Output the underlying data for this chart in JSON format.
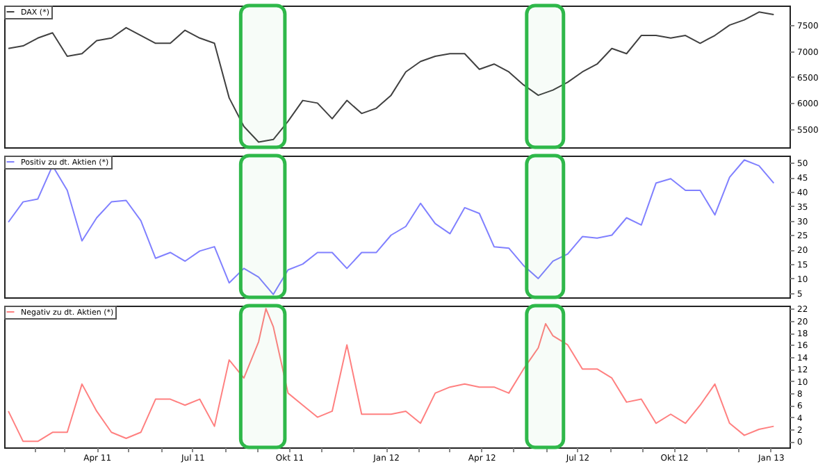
{
  "chart_data": [
    {
      "type": "line",
      "x": [
        "2011-01-07",
        "2011-01-21",
        "2011-02-04",
        "2011-02-18",
        "2011-03-04",
        "2011-03-18",
        "2011-04-01",
        "2011-04-15",
        "2011-04-29",
        "2011-05-13",
        "2011-05-27",
        "2011-06-10",
        "2011-06-24",
        "2011-07-08",
        "2011-07-22",
        "2011-08-05",
        "2011-08-19",
        "2011-09-02",
        "2011-09-16",
        "2011-09-30",
        "2011-10-14",
        "2011-10-28",
        "2011-11-11",
        "2011-11-25",
        "2011-12-09",
        "2011-12-23",
        "2012-01-06",
        "2012-01-20",
        "2012-02-03",
        "2012-02-17",
        "2012-03-02",
        "2012-03-16",
        "2012-03-30",
        "2012-04-13",
        "2012-04-27",
        "2012-05-11",
        "2012-05-25",
        "2012-06-08",
        "2012-06-22",
        "2012-07-06",
        "2012-07-20",
        "2012-08-03",
        "2012-08-17",
        "2012-08-31",
        "2012-09-14",
        "2012-09-28",
        "2012-10-12",
        "2012-10-26",
        "2012-11-09",
        "2012-11-23",
        "2012-12-07",
        "2012-12-21",
        "2013-01-04"
      ],
      "series": [
        {
          "name": "DAX (*)",
          "color": "#404040",
          "values": [
            7050,
            7100,
            7250,
            7350,
            6900,
            6950,
            7200,
            7250,
            7450,
            7300,
            7150,
            7150,
            7400,
            7250,
            7150,
            6100,
            5550,
            5250,
            5300,
            5650,
            6050,
            6000,
            5700,
            6050,
            5800,
            5900,
            6150,
            6600,
            6800,
            6900,
            6950,
            6950,
            6650,
            6750,
            6600,
            6350,
            6150,
            6250,
            6400,
            6600,
            6750,
            7050,
            6950,
            7300,
            7300,
            7250,
            7300,
            7150,
            7300,
            7500,
            7600,
            7750,
            7700
          ]
        }
      ],
      "xlim": [
        "2011-01-03",
        "2013-01-19"
      ],
      "ylim": [
        5150,
        7875
      ],
      "yticks": [
        5500,
        6000,
        6500,
        7000,
        7500
      ],
      "tick_labels": "y",
      "legend": "top left",
      "bands": [
        {
          "axis": "x",
          "from": "2011-08-16",
          "to": "2011-09-27",
          "color": "#2fb84a"
        },
        {
          "axis": "x",
          "from": "2012-05-14",
          "to": "2012-06-18",
          "color": "#2fb84a"
        }
      ]
    },
    {
      "type": "line",
      "x": [
        "2011-01-07",
        "2011-01-21",
        "2011-02-04",
        "2011-02-18",
        "2011-03-04",
        "2011-03-18",
        "2011-04-01",
        "2011-04-15",
        "2011-04-29",
        "2011-05-13",
        "2011-05-27",
        "2011-06-10",
        "2011-06-24",
        "2011-07-08",
        "2011-07-22",
        "2011-08-05",
        "2011-08-19",
        "2011-09-02",
        "2011-09-16",
        "2011-09-30",
        "2011-10-14",
        "2011-10-28",
        "2011-11-11",
        "2011-11-25",
        "2011-12-09",
        "2011-12-23",
        "2012-01-06",
        "2012-01-20",
        "2012-02-03",
        "2012-02-17",
        "2012-03-02",
        "2012-03-16",
        "2012-03-30",
        "2012-04-13",
        "2012-04-27",
        "2012-05-11",
        "2012-05-25",
        "2012-06-08",
        "2012-06-22",
        "2012-07-06",
        "2012-07-20",
        "2012-08-03",
        "2012-08-17",
        "2012-08-31",
        "2012-09-14",
        "2012-09-28",
        "2012-10-12",
        "2012-10-26",
        "2012-11-09",
        "2012-11-23",
        "2012-12-07",
        "2012-12-21",
        "2013-01-04"
      ],
      "series": [
        {
          "name": "Positiv zu dt. Aktien (*)",
          "color": "#8080ff",
          "values": [
            29.5,
            36.5,
            37.5,
            49,
            40.5,
            23,
            31,
            36.5,
            37,
            30,
            17,
            19,
            16,
            19.5,
            21,
            8.5,
            13.5,
            10.5,
            4.5,
            13,
            15,
            19,
            19,
            13.5,
            19,
            19,
            25,
            28,
            36,
            29,
            25.5,
            34.5,
            32.5,
            21,
            20.5,
            14.5,
            10,
            16,
            18.5,
            24.5,
            24,
            25,
            31,
            28.5,
            43,
            44.5,
            40.5,
            40.5,
            32,
            45,
            51,
            49,
            43
          ]
        }
      ],
      "xlim": [
        "2011-01-03",
        "2013-01-19"
      ],
      "ylim": [
        3.5,
        52.5
      ],
      "yticks": [
        5,
        10,
        15,
        20,
        25,
        30,
        35,
        40,
        45,
        50
      ],
      "tick_labels": "y",
      "legend": "top left",
      "bands": [
        {
          "axis": "x",
          "from": "2011-08-16",
          "to": "2011-09-27",
          "color": "#2fb84a"
        },
        {
          "axis": "x",
          "from": "2012-05-14",
          "to": "2012-06-18",
          "color": "#2fb84a"
        }
      ]
    },
    {
      "type": "line",
      "x": [
        "2011-01-07",
        "2011-01-21",
        "2011-02-04",
        "2011-02-18",
        "2011-03-04",
        "2011-03-18",
        "2011-04-01",
        "2011-04-15",
        "2011-04-29",
        "2011-05-13",
        "2011-05-27",
        "2011-06-10",
        "2011-06-24",
        "2011-07-08",
        "2011-07-22",
        "2011-08-05",
        "2011-08-19",
        "2011-09-02",
        "2011-09-09",
        "2011-09-16",
        "2011-09-30",
        "2011-10-14",
        "2011-10-28",
        "2011-11-11",
        "2011-11-25",
        "2011-12-09",
        "2011-12-23",
        "2012-01-06",
        "2012-01-20",
        "2012-02-03",
        "2012-02-17",
        "2012-03-02",
        "2012-03-16",
        "2012-03-30",
        "2012-04-13",
        "2012-04-27",
        "2012-05-11",
        "2012-05-25",
        "2012-06-01",
        "2012-06-08",
        "2012-06-22",
        "2012-07-06",
        "2012-07-20",
        "2012-08-03",
        "2012-08-17",
        "2012-08-31",
        "2012-09-14",
        "2012-09-28",
        "2012-10-12",
        "2012-10-26",
        "2012-11-09",
        "2012-11-23",
        "2012-12-07",
        "2012-12-21",
        "2013-01-04"
      ],
      "series": [
        {
          "name": "Negativ zu dt. Aktien (*)",
          "color": "#ff8080",
          "values": [
            5,
            0,
            0,
            1.5,
            1.5,
            9.5,
            5,
            1.5,
            0.5,
            1.5,
            7,
            7,
            6,
            7,
            2.5,
            13.5,
            10.5,
            16.5,
            22,
            19,
            8,
            6,
            4,
            5,
            16,
            4.5,
            4.5,
            4.5,
            5,
            3,
            8,
            9,
            9.5,
            9,
            9,
            8,
            12,
            15.5,
            19.5,
            17.5,
            16,
            12,
            12,
            10.5,
            6.5,
            7,
            3,
            4.5,
            3,
            6,
            9.5,
            3,
            1,
            2,
            2.5
          ]
        }
      ],
      "xlim": [
        "2011-01-03",
        "2013-01-19"
      ],
      "xticks": [
        {
          "value": "2011-02-01",
          "label": null
        },
        {
          "value": "2011-03-01",
          "label": null
        },
        {
          "value": "2011-04-01",
          "label": "Apr 11"
        },
        {
          "value": "2011-05-01",
          "label": null
        },
        {
          "value": "2011-06-01",
          "label": null
        },
        {
          "value": "2011-07-01",
          "label": "Jul 11"
        },
        {
          "value": "2011-08-01",
          "label": null
        },
        {
          "value": "2011-09-01",
          "label": null
        },
        {
          "value": "2011-10-01",
          "label": "Okt 11"
        },
        {
          "value": "2011-11-01",
          "label": null
        },
        {
          "value": "2011-12-01",
          "label": null
        },
        {
          "value": "2012-01-01",
          "label": "Jan 12"
        },
        {
          "value": "2012-02-01",
          "label": null
        },
        {
          "value": "2012-03-01",
          "label": null
        },
        {
          "value": "2012-04-01",
          "label": "Apr 12"
        },
        {
          "value": "2012-05-01",
          "label": null
        },
        {
          "value": "2012-06-01",
          "label": null
        },
        {
          "value": "2012-07-01",
          "label": "Jul 12"
        },
        {
          "value": "2012-08-01",
          "label": null
        },
        {
          "value": "2012-09-01",
          "label": null
        },
        {
          "value": "2012-10-01",
          "label": "Okt 12"
        },
        {
          "value": "2012-11-01",
          "label": null
        },
        {
          "value": "2012-12-01",
          "label": null
        },
        {
          "value": "2013-01-01",
          "label": "Jan 13"
        }
      ],
      "ylim": [
        -1,
        22.5
      ],
      "yticks": [
        0,
        2,
        4,
        6,
        8,
        10,
        12,
        14,
        16,
        18,
        20,
        22
      ],
      "legend": "top left",
      "bands": [
        {
          "axis": "x",
          "from": "2011-08-16",
          "to": "2011-09-27",
          "color": "#2fb84a"
        },
        {
          "axis": "x",
          "from": "2012-05-14",
          "to": "2012-06-18",
          "color": "#2fb84a"
        }
      ]
    }
  ]
}
